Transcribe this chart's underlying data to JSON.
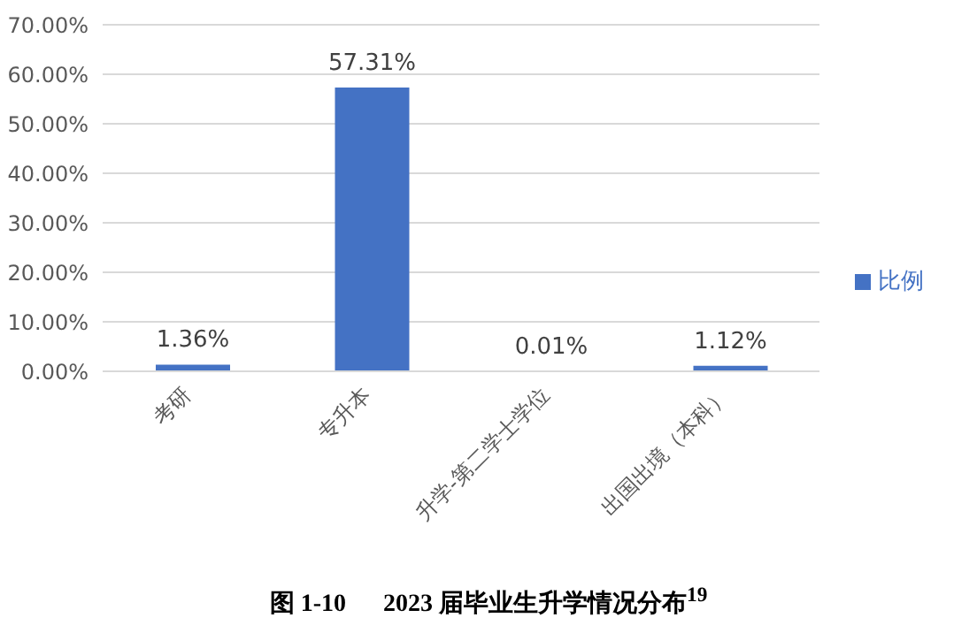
{
  "chart_data": {
    "type": "bar",
    "title": "图 1-10      2023 届毕业生升学情况分布$^{19}$",
    "categories": [
      "考研",
      "专升本",
      "升学-第二学士学位",
      "出国出境（本科）"
    ],
    "series": [
      {
        "name": "比例",
        "color": "#4472c4",
        "values": [
          1.36,
          57.31,
          0.01,
          1.12
        ],
        "value_labels": [
          "1.36%",
          "57.31%",
          "0.01%",
          "1.12%"
        ]
      }
    ],
    "ylim": [
      0,
      70
    ],
    "yticks": [
      {
        "value": 0,
        "label": "0.00%"
      },
      {
        "value": 10,
        "label": "10.00%"
      },
      {
        "value": 20,
        "label": "20.00%"
      },
      {
        "value": 30,
        "label": "30.00%"
      },
      {
        "value": 40,
        "label": "40.00%"
      },
      {
        "value": 50,
        "label": "50.00%"
      },
      {
        "value": 60,
        "label": "60.00%"
      },
      {
        "value": 70,
        "label": "70.00%"
      }
    ],
    "grid": "y",
    "legend": "right"
  }
}
